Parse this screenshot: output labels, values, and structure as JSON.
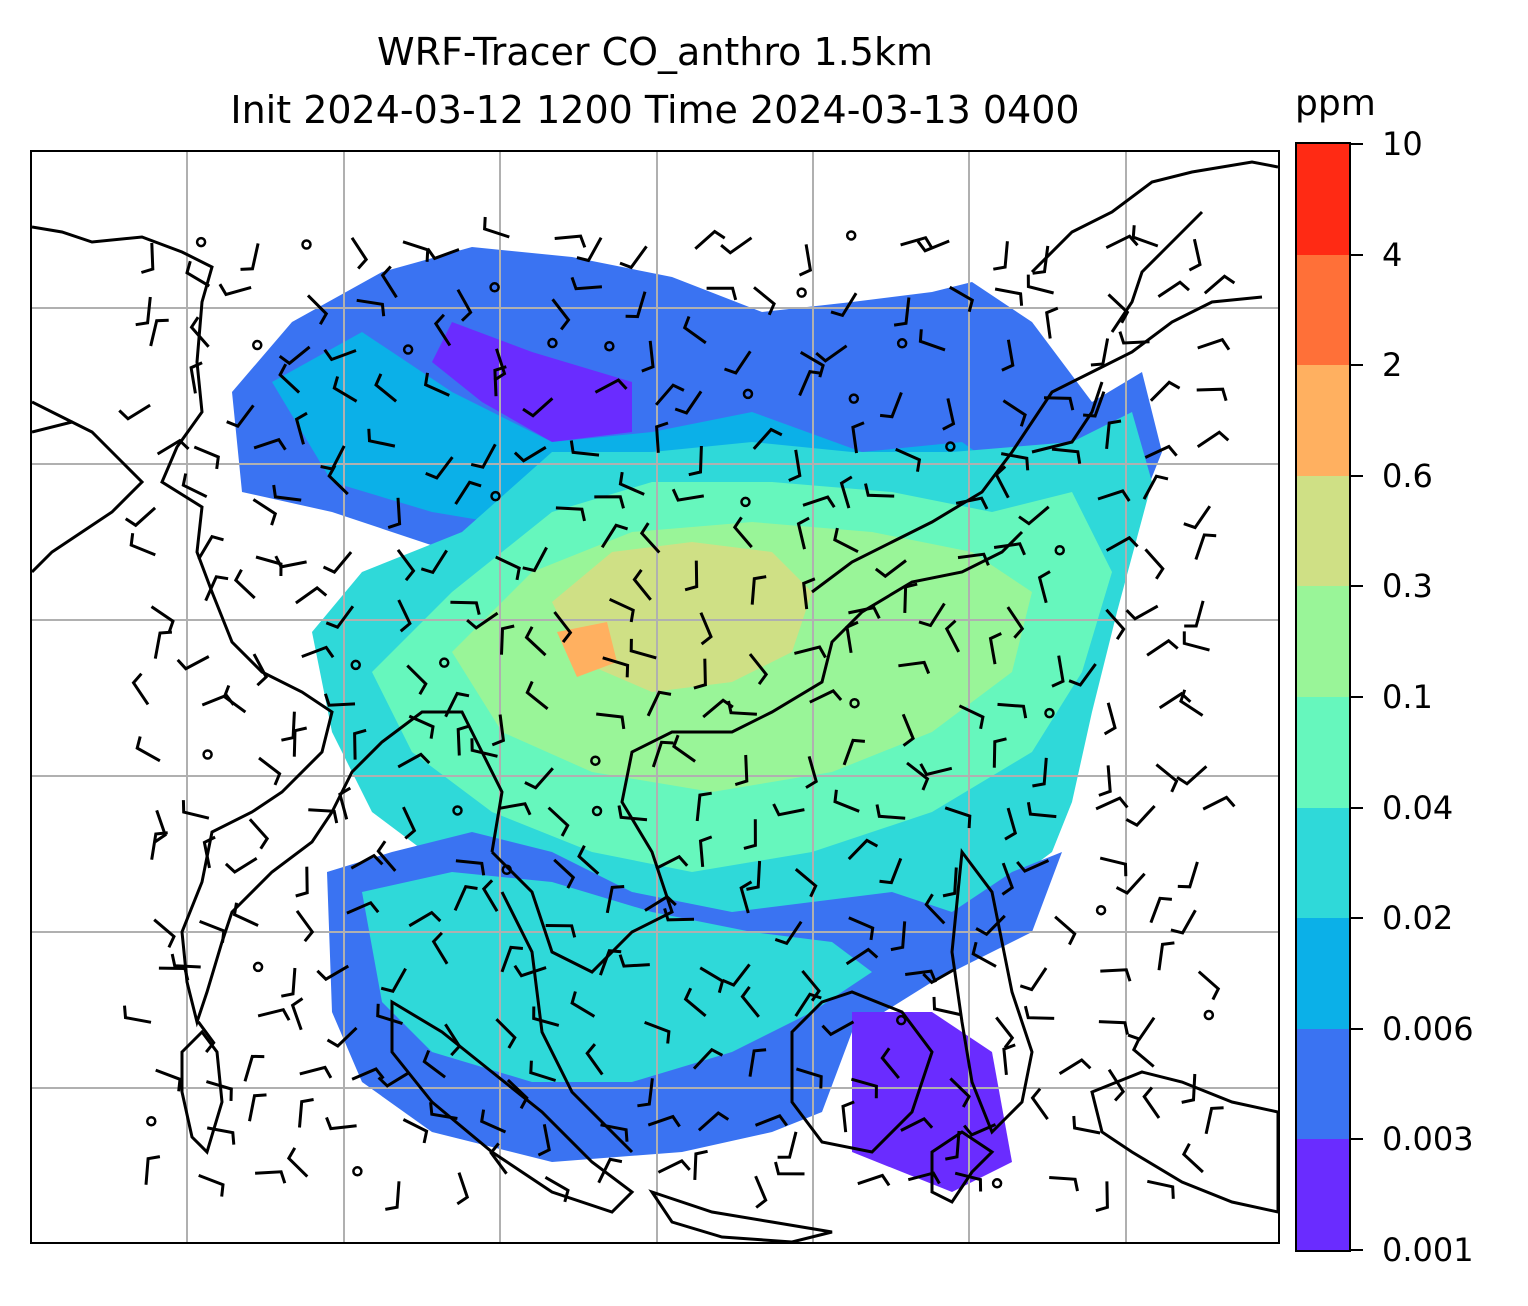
{
  "title": {
    "line1": "WRF-Tracer CO_anthro 1.5km",
    "line2": "Init 2024-03-12 1200 Time 2024-03-13 0400"
  },
  "colorbar": {
    "unit": "ppm",
    "levels": [
      "0.001",
      "0.003",
      "0.006",
      "0.02",
      "0.04",
      "0.1",
      "0.3",
      "0.6",
      "2",
      "4",
      "10"
    ],
    "colors": [
      "#6a2cff",
      "#3a73f2",
      "#0bb0e8",
      "#2fd9d9",
      "#66f7bd",
      "#99f598",
      "#cfe085",
      "#ffb060",
      "#ff7038",
      "#ff2a14"
    ]
  },
  "map": {
    "background": "#ffffff",
    "gridline_color": "#b0b0b0",
    "coastline_color": "#000000",
    "wind_barb_color": "#000000"
  }
}
